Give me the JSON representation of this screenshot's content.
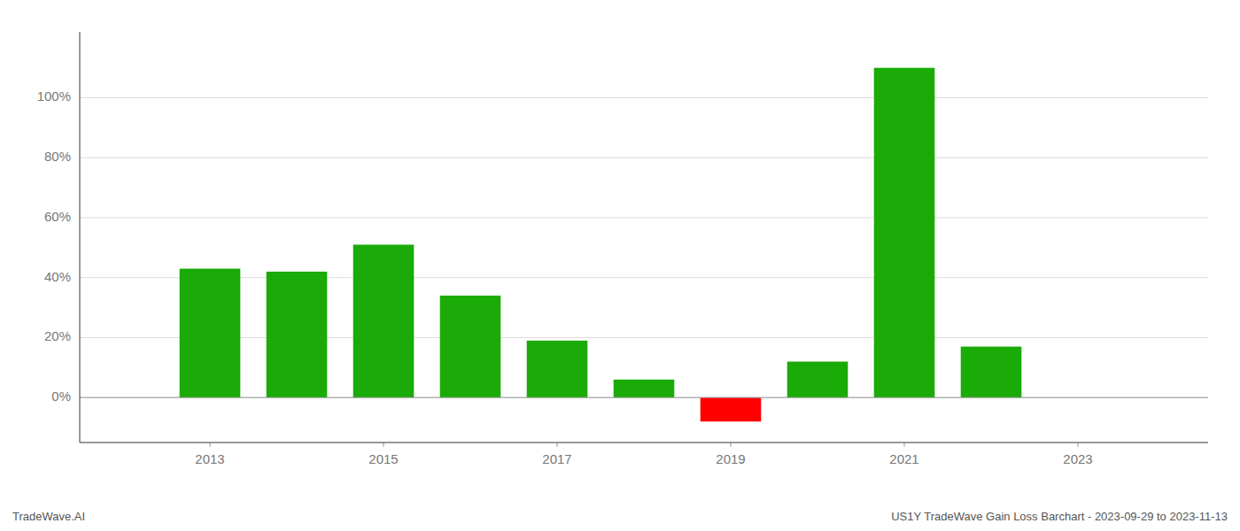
{
  "chart_data": {
    "type": "bar",
    "title": "US1Y TradeWave Gain Loss Barchart - 2023-09-29 to 2023-11-13",
    "annotations": [
      "TradeWave.AI"
    ],
    "x": [
      2013,
      2014,
      2015,
      2016,
      2017,
      2018,
      2019,
      2020,
      2021,
      2022
    ],
    "values": [
      0.43,
      0.42,
      0.51,
      0.34,
      0.19,
      0.06,
      -0.08,
      0.12,
      1.1,
      0.17
    ],
    "colors": [
      "#1aab08",
      "#1aab08",
      "#1aab08",
      "#1aab08",
      "#1aab08",
      "#1aab08",
      "#ff0000",
      "#1aab08",
      "#1aab08",
      "#1aab08"
    ],
    "xlim": [
      2011.5,
      2024.5
    ],
    "ylim": [
      -0.15,
      1.22
    ],
    "xticks": [
      2013,
      2015,
      2017,
      2019,
      2021,
      2023
    ],
    "yticks": [
      {
        "value": 0.0,
        "label": "0%"
      },
      {
        "value": 0.2,
        "label": "20%"
      },
      {
        "value": 0.4,
        "label": "40%"
      },
      {
        "value": 0.6,
        "label": "60%"
      },
      {
        "value": 0.8,
        "label": "80%"
      },
      {
        "value": 1.0,
        "label": "100%"
      }
    ],
    "grid": true
  }
}
